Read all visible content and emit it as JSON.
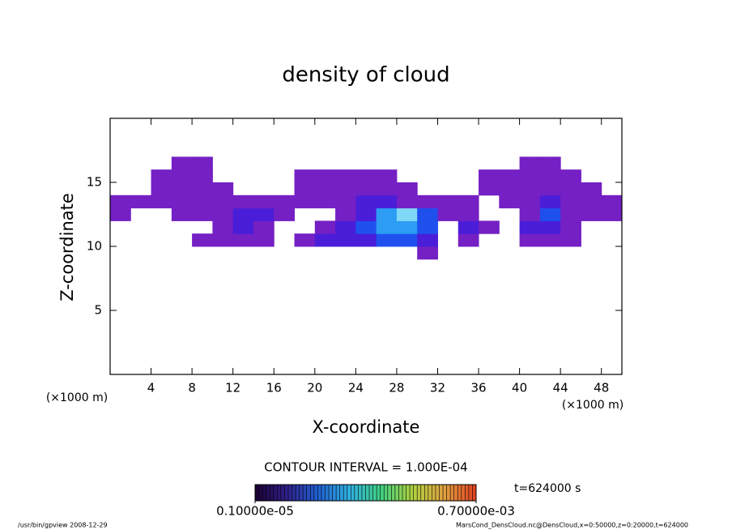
{
  "chart_data": {
    "type": "contour",
    "title": "density of cloud",
    "x_label": "X-coordinate",
    "y_label": "Z-coordinate",
    "x_unit": "(×1000 m)",
    "y_unit": "(×1000 m)",
    "xlim": [
      0,
      50
    ],
    "ylim": [
      0,
      20
    ],
    "xticks": [
      4,
      8,
      12,
      16,
      20,
      24,
      28,
      32,
      36,
      40,
      44,
      48
    ],
    "yticks": [
      5,
      10,
      15
    ],
    "x": [
      1,
      3,
      5,
      7,
      9,
      11,
      13,
      15,
      17,
      19,
      21,
      23,
      25,
      27,
      29,
      31,
      33,
      35,
      37,
      39,
      41,
      43,
      45,
      47,
      49
    ],
    "z": [
      9.5,
      10.5,
      11.5,
      12.5,
      13.5,
      14.5,
      15.5,
      16.5
    ],
    "values": [
      [
        0,
        0,
        0,
        0,
        0,
        0,
        0,
        0,
        0,
        0,
        0,
        0,
        0,
        0,
        0,
        0.0001,
        0,
        0,
        0,
        0,
        0,
        0,
        0,
        0,
        0
      ],
      [
        0,
        0,
        0,
        0,
        0.0001,
        0.0001,
        0.0001,
        0.0001,
        0,
        0.0001,
        0.0002,
        0.0002,
        0.0002,
        0.0003,
        0.0003,
        0.0002,
        0,
        0.0001,
        0,
        0,
        0.0001,
        0.0001,
        0.0001,
        0,
        0
      ],
      [
        0,
        0,
        0,
        0,
        0,
        0.0001,
        0.0002,
        0.0001,
        0,
        0,
        0.0001,
        0.0002,
        0.0003,
        0.0004,
        0.0004,
        0.0003,
        0,
        0.0002,
        0.0001,
        0,
        0.0002,
        0.0002,
        0.0001,
        0,
        0
      ],
      [
        0.0001,
        0,
        0,
        0.0001,
        0.0001,
        0.0001,
        0.0002,
        0.0002,
        0.0001,
        0,
        0,
        0.0001,
        0.0002,
        0.0004,
        0.0005,
        0.0003,
        0.0001,
        0.0001,
        0,
        0,
        0.0001,
        0.0003,
        0.0001,
        0.0001,
        0.0001
      ],
      [
        0.0001,
        0.0001,
        0.0001,
        0.0001,
        0.0001,
        0.0001,
        0.0001,
        0.0001,
        0.0001,
        0.0001,
        0.0001,
        0.0001,
        0.0002,
        0.0002,
        0.0001,
        0.0001,
        0.0001,
        0.0001,
        0,
        0.0001,
        0.0001,
        0.0002,
        0.0001,
        0.0001,
        0.0001
      ],
      [
        0,
        0,
        0.0001,
        0.0001,
        0.0001,
        0.0001,
        0,
        0,
        0,
        0.0001,
        0.0001,
        0.0001,
        0.0001,
        0.0001,
        0.0001,
        0,
        0,
        0,
        0.0001,
        0.0001,
        0.0001,
        0.0001,
        0.0001,
        0.0001,
        0
      ],
      [
        0,
        0,
        0.0001,
        0.0001,
        0.0001,
        0,
        0,
        0,
        0,
        0.0001,
        0.0001,
        0.0001,
        0.0001,
        0.0001,
        0,
        0,
        0,
        0,
        0.0001,
        0.0001,
        0.0001,
        0.0001,
        0.0001,
        0,
        0
      ],
      [
        0,
        0,
        0,
        0.0001,
        0.0001,
        0,
        0,
        0,
        0,
        0,
        0,
        0,
        0,
        0,
        0,
        0,
        0,
        0,
        0,
        0,
        0.0001,
        0.0001,
        0,
        0,
        0
      ]
    ],
    "levels": [
      0.0001,
      0.0002,
      0.0003,
      0.0004,
      0.0005
    ],
    "level_colors": [
      "#7420c4",
      "#4a1ed8",
      "#1f50ee",
      "#2c9cf4",
      "#7ed8f6"
    ],
    "colorbar_colors": [
      "#1a0030",
      "#30208a",
      "#2060d0",
      "#30b0e0",
      "#40d080",
      "#b0d040",
      "#e0a040",
      "#e04020"
    ],
    "colorbar_ticks": [
      {
        "value": 1e-06,
        "label": "0.10000e-05"
      },
      {
        "value": 0.0007,
        "label": "0.70000e-03"
      }
    ],
    "contour_interval": "CONTOUR INTERVAL = 1.000E-04",
    "time_label": "t=624000 s",
    "footer_left": "/usr/bin/gpview  2008-12-29",
    "footer_right": "MarsCond_DensCloud.nc@DensCloud,x=0:50000,z=0:20000,t=624000"
  }
}
